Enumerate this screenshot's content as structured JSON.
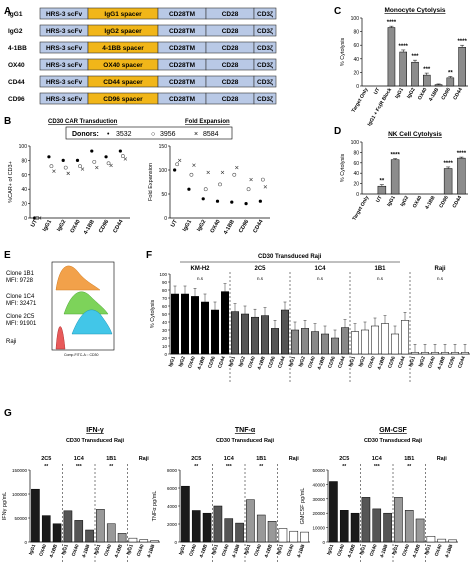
{
  "colors": {
    "scfv": "#b9c9e6",
    "spacer": "#f1b619",
    "tm": "#b9c9e6",
    "cd3": "#b9c9e6",
    "mono_bar": "#8c8c8c",
    "nk_bar": "#8c8c8c",
    "ifn_bar": "#1a1a1a",
    "flow_orange": "#f2a14a",
    "flow_green": "#7dd35a",
    "flow_cyan": "#42c6e8",
    "flow_red": "#e85a5a"
  },
  "panels": {
    "A": "A",
    "B": "B",
    "C": "C",
    "D": "D",
    "E": "E",
    "F": "F",
    "G": "G"
  },
  "panel_a": {
    "rows": [
      {
        "name": "IgG1",
        "scfv": "HRS-3 scFv",
        "spacer": "IgG1 spacer",
        "tm": "CD28TM",
        "cd28": "CD28",
        "cd3": "CD3ζ"
      },
      {
        "name": "IgG2",
        "scfv": "HRS-3 scFv",
        "spacer": "IgG2 spacer",
        "tm": "CD28TM",
        "cd28": "CD28",
        "cd3": "CD3ζ"
      },
      {
        "name": "4-1BB",
        "scfv": "HRS-3 scFv",
        "spacer": "4-1BB spacer",
        "tm": "CD28TM",
        "cd28": "CD28",
        "cd3": "CD3ζ"
      },
      {
        "name": "OX40",
        "scfv": "HRS-3 scFv",
        "spacer": "OX40 spacer",
        "tm": "CD28TM",
        "cd28": "CD28",
        "cd3": "CD3ζ"
      },
      {
        "name": "CD44",
        "scfv": "HRS-3 scFv",
        "spacer": "CD44 spacer",
        "tm": "CD28TM",
        "cd28": "CD28",
        "cd3": "CD3ζ"
      },
      {
        "name": "CD96",
        "scfv": "HRS-3 scFv",
        "spacer": "CD96 spacer",
        "tm": "CD28TM",
        "cd28": "CD28",
        "cd3": "CD3ζ"
      }
    ]
  },
  "panel_b": {
    "left_title": "CD30 CAR Transduction",
    "right_title": "Fold Expansion",
    "donors_label": "Donors:",
    "donors": [
      "3532",
      "3956",
      "8584"
    ],
    "donor_symbols": [
      "•",
      "○",
      "×"
    ]
  },
  "panel_e": {
    "labels": [
      {
        "name": "Clone 1B1",
        "mfi": "MFI: 9728"
      },
      {
        "name": "Clone 1C4",
        "mfi": "MFI: 32471"
      },
      {
        "name": "Clone 2C5",
        "mfi": "MFI: 91901"
      },
      {
        "name": "Raji",
        "mfi": ""
      }
    ],
    "xaxis": "Comp-FITC-A :: CD30"
  },
  "panel_f": {
    "title": "CD30 Transduced Raji",
    "ns": "n.s",
    "sig": "*"
  },
  "panel_g": {
    "subtitle": "CD30 Transduced\nRaji",
    "sig1": "**",
    "sig2": "***",
    "sig3": "*"
  },
  "chart_data": [
    {
      "id": "A",
      "type": "table",
      "columns": [
        "",
        "scFv",
        "spacer",
        "TM",
        "costim",
        "signal"
      ],
      "rows": [
        [
          "IgG1",
          "HRS-3 scFv",
          "IgG1 spacer",
          "CD28TM",
          "CD28",
          "CD3ζ"
        ],
        [
          "IgG2",
          "HRS-3 scFv",
          "IgG2 spacer",
          "CD28TM",
          "CD28",
          "CD3ζ"
        ],
        [
          "4-1BB",
          "HRS-3 scFv",
          "4-1BB spacer",
          "CD28TM",
          "CD28",
          "CD3ζ"
        ],
        [
          "OX40",
          "HRS-3 scFv",
          "OX40 spacer",
          "CD28TM",
          "CD28",
          "CD3ζ"
        ],
        [
          "CD44",
          "HRS-3 scFv",
          "CD44 spacer",
          "CD28TM",
          "CD28",
          "CD3ζ"
        ],
        [
          "CD96",
          "HRS-3 scFv",
          "CD96 spacer",
          "CD28TM",
          "CD28",
          "CD3ζ"
        ]
      ]
    },
    {
      "id": "B-left",
      "type": "scatter",
      "title": "CD30 CAR Transduction",
      "ylabel": "%CAR+ of CD3+",
      "ylim": [
        0,
        100
      ],
      "yticks": [
        0,
        20,
        40,
        60,
        80,
        100
      ],
      "categories": [
        "UT",
        "IgG1",
        "IgG2",
        "OX40",
        "4-1BB",
        "CD96",
        "CD44"
      ],
      "series": [
        {
          "name": "3532",
          "values": [
            0,
            85,
            80,
            80,
            93,
            85,
            93
          ]
        },
        {
          "name": "3956",
          "values": [
            0,
            72,
            70,
            72,
            78,
            76,
            86
          ]
        },
        {
          "name": "8584",
          "values": [
            0,
            65,
            62,
            68,
            70,
            73,
            82
          ]
        }
      ]
    },
    {
      "id": "B-right",
      "type": "scatter",
      "title": "Fold Expansion",
      "ylabel": "Fold Expansion",
      "ylim": [
        0,
        150
      ],
      "yticks": [
        0,
        50,
        100,
        150
      ],
      "categories": [
        "UT",
        "IgG1",
        "IgG2",
        "OX40",
        "4-1BB",
        "CD96",
        "CD44"
      ],
      "series": [
        {
          "name": "3532",
          "values": [
            100,
            60,
            40,
            35,
            33,
            30,
            35
          ]
        },
        {
          "name": "3956",
          "values": [
            112,
            90,
            60,
            70,
            90,
            60,
            80
          ]
        },
        {
          "name": "8584",
          "values": [
            120,
            110,
            95,
            95,
            105,
            80,
            65
          ]
        }
      ]
    },
    {
      "id": "C",
      "type": "bar",
      "title": "Monocyte Cytolysis",
      "ylabel": "% Cytolysis",
      "ylim": [
        0,
        100
      ],
      "yticks": [
        0,
        20,
        40,
        60,
        80,
        100
      ],
      "categories": [
        "Target Only",
        "UT",
        "IgG1 + Fc(R Block",
        "IgG1",
        "IgG2",
        "OX40",
        "4-1BB",
        "CD96",
        "CD44"
      ],
      "values": [
        0,
        0,
        86,
        50,
        35,
        16,
        2,
        12,
        57
      ],
      "errors": [
        0,
        0,
        2,
        3,
        3,
        3,
        1,
        2,
        3
      ],
      "significance": [
        "",
        "",
        "****",
        "****",
        "***",
        "***",
        "",
        "**",
        "****"
      ]
    },
    {
      "id": "D",
      "type": "bar",
      "title": "NK Cell Cytolysis",
      "ylabel": "% Cytolysis",
      "ylim": [
        0,
        100
      ],
      "yticks": [
        0,
        20,
        40,
        60,
        80,
        100
      ],
      "categories": [
        "Target Only",
        "UT",
        "IgG1",
        "IgG2",
        "OX40",
        "4-1BB",
        "CD96",
        "CD44"
      ],
      "values": [
        0,
        15,
        66,
        0,
        0,
        0,
        49,
        69
      ],
      "errors": [
        0,
        3,
        2,
        0,
        0,
        0,
        3,
        2
      ],
      "significance": [
        "",
        "**",
        "****",
        "",
        "",
        "",
        "****",
        "****"
      ]
    },
    {
      "id": "F",
      "type": "bar",
      "title": "CD30 Transduced Raji",
      "ylabel": "% Cytolysis",
      "ylim": [
        0,
        100
      ],
      "yticks": [
        0,
        10,
        20,
        30,
        40,
        50,
        60,
        70,
        80,
        90,
        100
      ],
      "groups": [
        "KM-H2",
        "2C5",
        "1C4",
        "1B1",
        "Raji"
      ],
      "categories": [
        "IgG1",
        "IgG2",
        "OX40",
        "4-1BB",
        "CD96",
        "CD44"
      ],
      "series": [
        {
          "name": "KM-H2",
          "values": [
            75,
            75,
            72,
            65,
            55,
            78
          ]
        },
        {
          "name": "2C5",
          "values": [
            53,
            50,
            46,
            48,
            32,
            55
          ]
        },
        {
          "name": "1C4",
          "values": [
            30,
            32,
            28,
            25,
            20,
            33
          ]
        },
        {
          "name": "1B1",
          "values": [
            28,
            30,
            35,
            38,
            25,
            42
          ]
        },
        {
          "name": "Raji",
          "values": [
            2,
            2,
            2,
            2,
            2,
            2
          ]
        }
      ]
    },
    {
      "id": "G-IFN",
      "type": "bar",
      "title": "IFN-γ",
      "subtitle": "CD30 Transduced Raji",
      "ylabel": "IFNγ pg/mL",
      "ylim": [
        0,
        150000
      ],
      "yticks": [
        0,
        50000,
        100000,
        150000
      ],
      "groups": [
        "2C5",
        "1C4",
        "1B1",
        "Raji"
      ],
      "categories": [
        "IgG1",
        "OX40",
        "4-1BB"
      ],
      "series": [
        {
          "name": "2C5",
          "values": [
            110000,
            55000,
            38000
          ]
        },
        {
          "name": "1C4",
          "values": [
            65000,
            45000,
            25000
          ]
        },
        {
          "name": "1B1",
          "values": [
            68000,
            38000,
            18000
          ]
        },
        {
          "name": "Raji",
          "values": [
            8000,
            5000,
            3000
          ]
        }
      ]
    },
    {
      "id": "G-TNF",
      "type": "bar",
      "title": "TNF-α",
      "subtitle": "CD30 Transduced Raji",
      "ylabel": "TNFα pg/mL",
      "ylim": [
        0,
        8000
      ],
      "yticks": [
        0,
        2000,
        4000,
        6000,
        8000
      ],
      "groups": [
        "2C5",
        "1C4",
        "1B1",
        "Raji"
      ],
      "categories": [
        "IgG1",
        "OX40",
        "4-1BB"
      ],
      "series": [
        {
          "name": "2C5",
          "values": [
            6200,
            3500,
            3200
          ]
        },
        {
          "name": "1C4",
          "values": [
            4000,
            2600,
            2100
          ]
        },
        {
          "name": "1B1",
          "values": [
            4700,
            3000,
            2300
          ]
        },
        {
          "name": "Raji",
          "values": [
            1500,
            1200,
            1100
          ]
        }
      ]
    },
    {
      "id": "G-GM",
      "type": "bar",
      "title": "GM-CSF",
      "subtitle": "CD30 Transduced Raji",
      "ylabel": "GMCSF pg/mL",
      "ylim": [
        0,
        50000
      ],
      "yticks": [
        0,
        10000,
        20000,
        30000,
        40000,
        50000
      ],
      "groups": [
        "2C5",
        "1C4",
        "1B1",
        "Raji"
      ],
      "categories": [
        "IgG1",
        "OX40",
        "4-1BB"
      ],
      "series": [
        {
          "name": "2C5",
          "values": [
            42000,
            22000,
            20000
          ]
        },
        {
          "name": "1C4",
          "values": [
            31000,
            23000,
            20000
          ]
        },
        {
          "name": "1B1",
          "values": [
            31000,
            22000,
            16000
          ]
        },
        {
          "name": "Raji",
          "values": [
            4000,
            2000,
            1500
          ]
        }
      ]
    }
  ]
}
